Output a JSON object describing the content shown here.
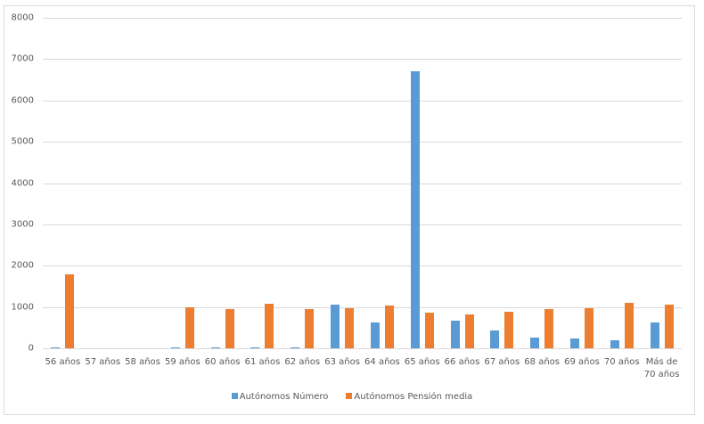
{
  "chart_data": {
    "type": "bar",
    "title": "",
    "xlabel": "",
    "ylabel": "",
    "ylim": [
      0,
      8000
    ],
    "yticks": [
      0,
      1000,
      2000,
      3000,
      4000,
      5000,
      6000,
      7000,
      8000
    ],
    "grid": true,
    "legend_position": "bottom",
    "categories": [
      "56 años",
      "57 años",
      "58 años",
      "59 años",
      "60 años",
      "61 años",
      "62 años",
      "63 años",
      "64 años",
      "65 años",
      "66 años",
      "67 años",
      "68 años",
      "69 años",
      "70 años",
      "Más de 70 años"
    ],
    "category_labels": [
      [
        "56 años"
      ],
      [
        "57 años"
      ],
      [
        "58 años"
      ],
      [
        "59 años"
      ],
      [
        "60 años"
      ],
      [
        "61 años"
      ],
      [
        "62 años"
      ],
      [
        "63 años"
      ],
      [
        "64 años"
      ],
      [
        "65 años"
      ],
      [
        "66 años"
      ],
      [
        "67 años"
      ],
      [
        "68 años"
      ],
      [
        "69 años"
      ],
      [
        "70 años"
      ],
      [
        "Más de",
        "70 años"
      ]
    ],
    "series": [
      {
        "name": "Autónomos Número",
        "color": "#5b9bd5",
        "values": [
          25,
          0,
          0,
          25,
          25,
          25,
          25,
          1060,
          630,
          6710,
          675,
          440,
          265,
          245,
          195,
          630
        ]
      },
      {
        "name": "Autónomos Pensión media",
        "color": "#ed7d31",
        "values": [
          1790,
          0,
          0,
          990,
          950,
          1080,
          950,
          970,
          1040,
          870,
          825,
          890,
          950,
          970,
          1100,
          1065
        ]
      }
    ]
  }
}
